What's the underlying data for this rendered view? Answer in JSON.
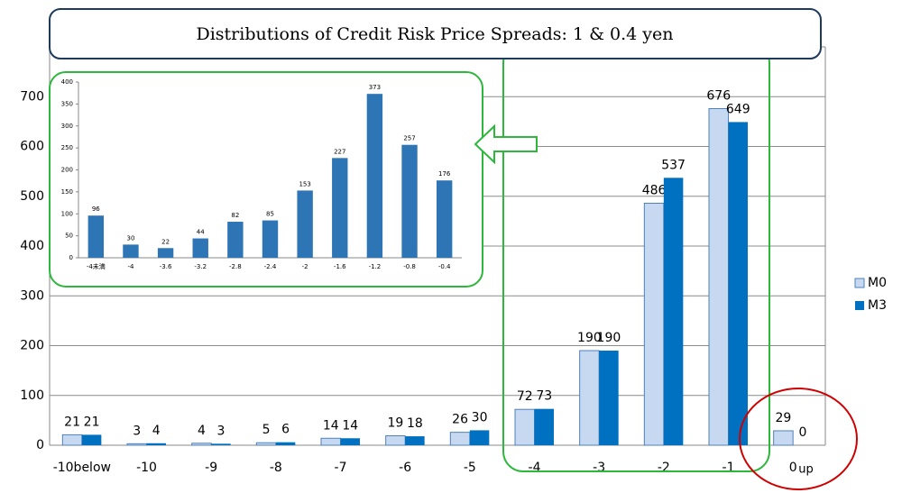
{
  "chart_data": [
    {
      "type": "bar",
      "title": "Distributions of Credit Risk Price Spreads: 1 & 0.4 yen",
      "categories": [
        "-10below",
        "-10",
        "-9",
        "-8",
        "-7",
        "-6",
        "-5",
        "-4",
        "-3",
        "-2",
        "-1",
        "0"
      ],
      "series": [
        {
          "name": "M0",
          "color": "#c6d9f1",
          "values": [
            21,
            3,
            4,
            5,
            14,
            19,
            26,
            72,
            190,
            486,
            676,
            29
          ]
        },
        {
          "name": "M3",
          "color": "#0070c0",
          "values": [
            21,
            4,
            3,
            6,
            14,
            18,
            30,
            73,
            190,
            537,
            649,
            0
          ]
        }
      ],
      "annotations": [
        "up"
      ],
      "ylim": [
        0,
        800
      ],
      "yticks": [
        0,
        100,
        200,
        300,
        400,
        500,
        600,
        700
      ],
      "grid": true,
      "legend": "right"
    },
    {
      "type": "bar",
      "categories": [
        "-4未満",
        "-4",
        "-3.6",
        "-3.2",
        "-2.8",
        "-2.4",
        "-2",
        "-1.6",
        "-1.2",
        "-0.8",
        "-0.4"
      ],
      "values": [
        96,
        30,
        22,
        44,
        82,
        85,
        153,
        227,
        373,
        257,
        176
      ],
      "color": "#2e75b6",
      "ylim": [
        0,
        400
      ],
      "yticks": [
        0,
        50,
        100,
        150,
        200,
        250,
        300,
        350,
        400
      ],
      "grid": false
    }
  ]
}
